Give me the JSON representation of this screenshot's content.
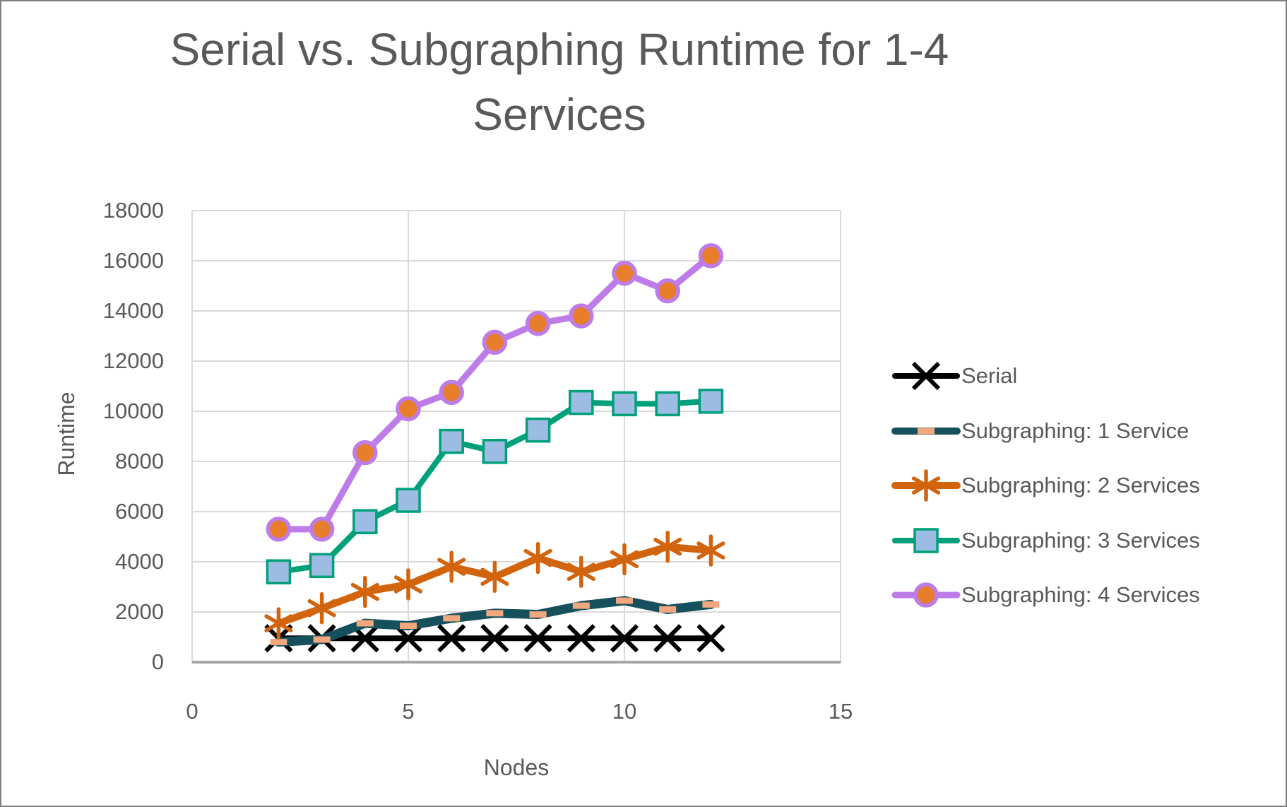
{
  "chart_data": {
    "type": "line",
    "title": "Serial vs. Subgraphing Runtime for 1-4 Services",
    "xlabel": "Nodes",
    "ylabel": "Runtime",
    "xlim": [
      0,
      15
    ],
    "ylim": [
      0,
      18000
    ],
    "x_ticks": [
      0,
      5,
      10,
      15
    ],
    "y_ticks": [
      0,
      2000,
      4000,
      6000,
      8000,
      10000,
      12000,
      14000,
      16000,
      18000
    ],
    "grid": true,
    "legend_position": "right",
    "x": [
      2,
      3,
      4,
      5,
      6,
      7,
      8,
      9,
      10,
      11,
      12
    ],
    "series": [
      {
        "name": "Serial",
        "marker": "x",
        "line_color": "#000000",
        "marker_color": "#000000",
        "line_width": 8,
        "values": [
          950,
          950,
          950,
          950,
          950,
          950,
          950,
          950,
          950,
          950,
          950
        ]
      },
      {
        "name": "Subgraphing: 1 Service",
        "marker": "dash",
        "line_color": "#16505C",
        "marker_color": "#F2A77E",
        "line_width": 13,
        "values": [
          800,
          900,
          1550,
          1450,
          1750,
          1950,
          1900,
          2250,
          2450,
          2100,
          2300
        ]
      },
      {
        "name": "Subgraphing: 2 Services",
        "marker": "asterisk",
        "line_color": "#D2640E",
        "marker_color": "#D2640E",
        "line_width": 10,
        "values": [
          1550,
          2150,
          2800,
          3100,
          3800,
          3400,
          4150,
          3600,
          4100,
          4600,
          4450
        ]
      },
      {
        "name": "Subgraphing: 3 Services",
        "marker": "square",
        "line_color": "#00A07A",
        "marker_color": "#9DBCE3",
        "line_width": 8,
        "values": [
          3600,
          3850,
          5600,
          6450,
          8800,
          8400,
          9250,
          10350,
          10300,
          10300,
          10400
        ]
      },
      {
        "name": "Subgraphing: 4 Services",
        "marker": "circle",
        "line_color": "#BD7CE8",
        "marker_color": "#E87E2B",
        "line_width": 9,
        "values": [
          5300,
          5300,
          8350,
          10100,
          10750,
          12750,
          13500,
          13800,
          15500,
          14800,
          16200
        ]
      }
    ]
  },
  "styles": {
    "text_color": "#595959",
    "gridline_color": "#D9D9D9",
    "axis_line_color": "#A6A6A6",
    "frame_color": "#7F7F7F"
  }
}
